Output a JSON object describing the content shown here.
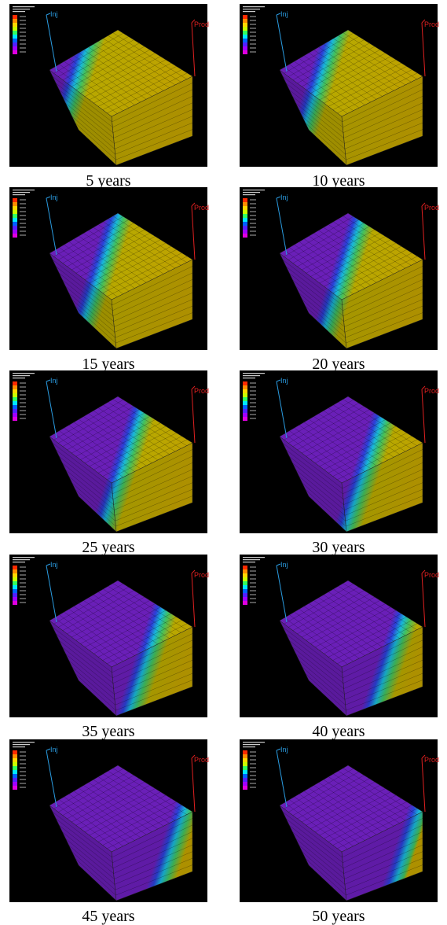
{
  "panels": [
    {
      "caption": "5 years",
      "injector": "Inj",
      "producer": "Prod"
    },
    {
      "caption": "10 years",
      "injector": "Inj",
      "producer": "Prod"
    },
    {
      "caption": "15 years",
      "injector": "Inj",
      "producer": "Prod"
    },
    {
      "caption": "20 years",
      "injector": "Inj",
      "producer": "Prod"
    },
    {
      "caption": "25 years",
      "injector": "Inj",
      "producer": "Prod"
    },
    {
      "caption": "30 years",
      "injector": "Inj",
      "producer": "Prod"
    },
    {
      "caption": "35 years",
      "injector": "Inj",
      "producer": "Prod"
    },
    {
      "caption": "40 years",
      "injector": "Inj",
      "producer": "Prod"
    },
    {
      "caption": "45 years",
      "injector": "Inj",
      "producer": "Prod"
    },
    {
      "caption": "50 years",
      "injector": "Inj",
      "producer": "Prod"
    }
  ]
}
